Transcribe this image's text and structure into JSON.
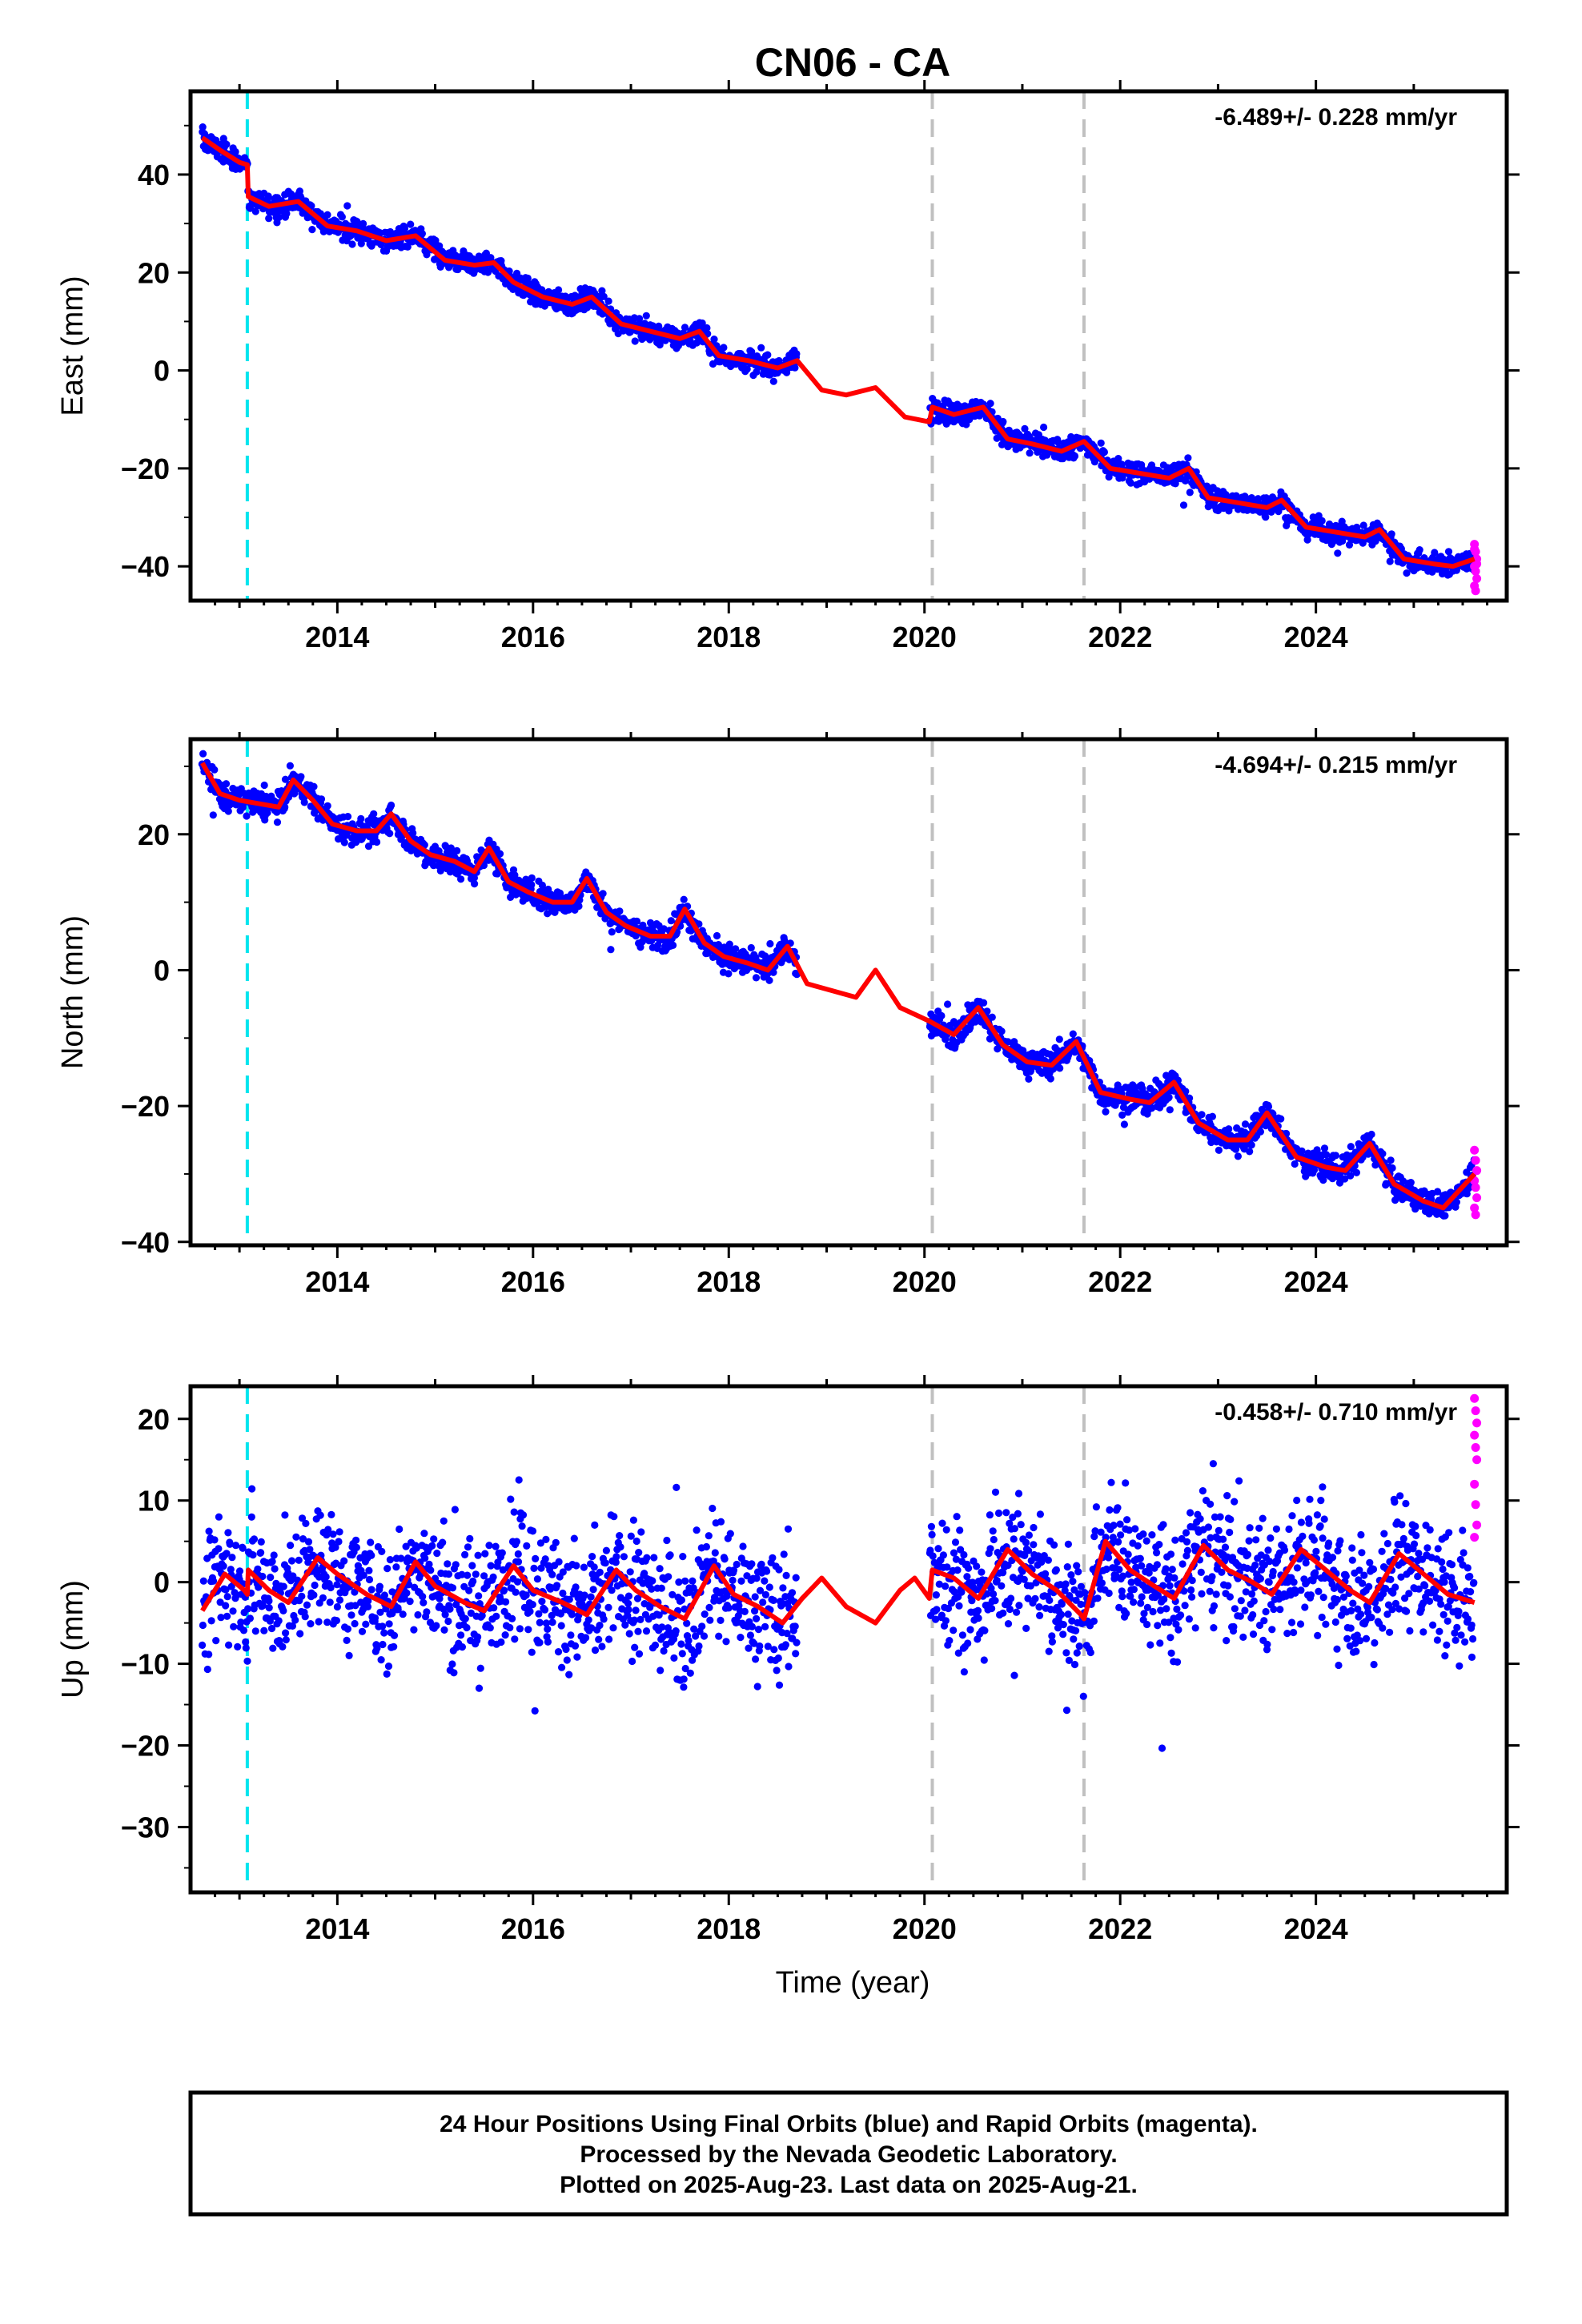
{
  "chart_data": {
    "title": "CN06 - CA",
    "type": "scatter",
    "x_ticks": [
      "2014",
      "2016",
      "2018",
      "2020",
      "2022",
      "2024"
    ],
    "xlim": [
      2012.5,
      2025.95
    ],
    "xlabel": "Time (year)",
    "vertical_lines": [
      {
        "x": 2013.08,
        "color": "#00e5ee",
        "style": "dashed"
      },
      {
        "x": 2020.08,
        "color": "#c0c0c0",
        "style": "dashed"
      },
      {
        "x": 2021.63,
        "color": "#c0c0c0",
        "style": "dashed"
      }
    ],
    "data_gap": [
      2018.7,
      2020.05
    ],
    "colors": {
      "final": "#0000ff",
      "rapid": "#ff00ff",
      "model": "#ff0000"
    },
    "panels": [
      {
        "ylabel": "East (mm)",
        "rate": "-6.489+/- 0.228 mm/yr",
        "y_ticks": [
          "40",
          "20",
          "0",
          "−20",
          "−40"
        ],
        "ylim": [
          -47,
          57
        ],
        "noise": 1.6,
        "model": [
          [
            2012.62,
            47.5
          ],
          [
            2012.8,
            45
          ],
          [
            2013.0,
            42.5
          ],
          [
            2013.08,
            42
          ],
          [
            2013.09,
            35.5
          ],
          [
            2013.3,
            33.5
          ],
          [
            2013.6,
            34.5
          ],
          [
            2013.9,
            29.5
          ],
          [
            2014.2,
            28.5
          ],
          [
            2014.5,
            26.5
          ],
          [
            2014.8,
            27.5
          ],
          [
            2015.1,
            22.5
          ],
          [
            2015.4,
            21.5
          ],
          [
            2015.6,
            22
          ],
          [
            2015.8,
            18
          ],
          [
            2016.1,
            15
          ],
          [
            2016.4,
            13.5
          ],
          [
            2016.6,
            15
          ],
          [
            2016.9,
            9.5
          ],
          [
            2017.2,
            8
          ],
          [
            2017.5,
            6.5
          ],
          [
            2017.7,
            8
          ],
          [
            2017.9,
            3
          ],
          [
            2018.2,
            2
          ],
          [
            2018.5,
            0.5
          ],
          [
            2018.7,
            2
          ],
          [
            2018.95,
            -4
          ],
          [
            2019.2,
            -5
          ],
          [
            2019.5,
            -3.5
          ],
          [
            2019.8,
            -9.5
          ],
          [
            2020.05,
            -10.5
          ],
          [
            2020.08,
            -7.5
          ],
          [
            2020.3,
            -9
          ],
          [
            2020.6,
            -7.5
          ],
          [
            2020.85,
            -14
          ],
          [
            2021.1,
            -15
          ],
          [
            2021.4,
            -16.5
          ],
          [
            2021.63,
            -14.5
          ],
          [
            2021.9,
            -20
          ],
          [
            2022.2,
            -21
          ],
          [
            2022.5,
            -22
          ],
          [
            2022.7,
            -20
          ],
          [
            2022.9,
            -26
          ],
          [
            2023.2,
            -27
          ],
          [
            2023.5,
            -28
          ],
          [
            2023.65,
            -26.5
          ],
          [
            2023.9,
            -32
          ],
          [
            2024.2,
            -33
          ],
          [
            2024.5,
            -34
          ],
          [
            2024.65,
            -32.5
          ],
          [
            2024.9,
            -38.5
          ],
          [
            2025.2,
            -39.5
          ],
          [
            2025.4,
            -40
          ],
          [
            2025.62,
            -38.5
          ]
        ],
        "rapid": [
          -35.5,
          -37,
          -38.5,
          -40,
          -41,
          -42.5,
          -44,
          -45,
          -39.5,
          -36.5
        ]
      },
      {
        "ylabel": "North (mm)",
        "rate": "-4.694+/- 0.215 mm/yr",
        "y_ticks": [
          "20",
          "0",
          "−20",
          "−40"
        ],
        "ylim": [
          -40.5,
          34
        ],
        "noise": 1.4,
        "model": [
          [
            2012.62,
            30.5
          ],
          [
            2012.8,
            26
          ],
          [
            2013.0,
            25
          ],
          [
            2013.2,
            24.5
          ],
          [
            2013.4,
            24
          ],
          [
            2013.55,
            28
          ],
          [
            2013.75,
            25
          ],
          [
            2013.95,
            21.5
          ],
          [
            2014.2,
            20.5
          ],
          [
            2014.4,
            20.5
          ],
          [
            2014.55,
            23
          ],
          [
            2014.75,
            19
          ],
          [
            2014.95,
            17
          ],
          [
            2015.2,
            16
          ],
          [
            2015.4,
            14.5
          ],
          [
            2015.55,
            18
          ],
          [
            2015.75,
            13
          ],
          [
            2015.95,
            11.5
          ],
          [
            2016.2,
            10
          ],
          [
            2016.4,
            10
          ],
          [
            2016.55,
            13.5
          ],
          [
            2016.75,
            8.5
          ],
          [
            2016.95,
            6.5
          ],
          [
            2017.2,
            5
          ],
          [
            2017.4,
            5
          ],
          [
            2017.55,
            9
          ],
          [
            2017.75,
            4
          ],
          [
            2017.95,
            2
          ],
          [
            2018.2,
            1
          ],
          [
            2018.4,
            0
          ],
          [
            2018.6,
            3.5
          ],
          [
            2018.8,
            -2
          ],
          [
            2019.05,
            -3
          ],
          [
            2019.3,
            -4
          ],
          [
            2019.5,
            0
          ],
          [
            2019.75,
            -5.5
          ],
          [
            2020.05,
            -7.5
          ],
          [
            2020.3,
            -9.5
          ],
          [
            2020.55,
            -5.5
          ],
          [
            2020.8,
            -11
          ],
          [
            2021.05,
            -13.5
          ],
          [
            2021.3,
            -14
          ],
          [
            2021.55,
            -10.5
          ],
          [
            2021.8,
            -18
          ],
          [
            2022.1,
            -19
          ],
          [
            2022.3,
            -19.5
          ],
          [
            2022.55,
            -16.5
          ],
          [
            2022.8,
            -22.5
          ],
          [
            2023.1,
            -25
          ],
          [
            2023.3,
            -25
          ],
          [
            2023.5,
            -21
          ],
          [
            2023.8,
            -27.5
          ],
          [
            2024.1,
            -29
          ],
          [
            2024.3,
            -29.5
          ],
          [
            2024.55,
            -25.5
          ],
          [
            2024.8,
            -31.5
          ],
          [
            2025.1,
            -34
          ],
          [
            2025.3,
            -35
          ],
          [
            2025.62,
            -30
          ]
        ],
        "rapid": [
          -26.5,
          -28,
          -29.5,
          -31,
          -32,
          -33.5,
          -35,
          -36
        ]
      },
      {
        "ylabel": "Up (mm)",
        "rate": "-0.458+/- 0.710 mm/yr",
        "y_ticks": [
          "20",
          "10",
          "0",
          "−10",
          "−20",
          "−30"
        ],
        "ylim": [
          -38,
          24
        ],
        "noise": 5.5,
        "model": [
          [
            2012.62,
            -3.5
          ],
          [
            2012.85,
            1
          ],
          [
            2013.05,
            -1
          ],
          [
            2013.08,
            -1.5
          ],
          [
            2013.09,
            1.5
          ],
          [
            2013.3,
            -1
          ],
          [
            2013.5,
            -2.5
          ],
          [
            2013.8,
            3
          ],
          [
            2014.0,
            1
          ],
          [
            2014.3,
            -1.5
          ],
          [
            2014.55,
            -3
          ],
          [
            2014.8,
            2.5
          ],
          [
            2015.0,
            -0.5
          ],
          [
            2015.3,
            -2.5
          ],
          [
            2015.5,
            -3.5
          ],
          [
            2015.8,
            2
          ],
          [
            2016.0,
            -1
          ],
          [
            2016.3,
            -2.5
          ],
          [
            2016.55,
            -4
          ],
          [
            2016.85,
            1.5
          ],
          [
            2017.05,
            -1
          ],
          [
            2017.3,
            -3
          ],
          [
            2017.55,
            -4.5
          ],
          [
            2017.85,
            2
          ],
          [
            2018.05,
            -1.5
          ],
          [
            2018.3,
            -3
          ],
          [
            2018.55,
            -5
          ],
          [
            2018.75,
            -2
          ],
          [
            2018.95,
            0.5
          ],
          [
            2019.2,
            -3
          ],
          [
            2019.5,
            -5
          ],
          [
            2019.75,
            -1
          ],
          [
            2019.9,
            0.5
          ],
          [
            2020.05,
            -2
          ],
          [
            2020.08,
            1.5
          ],
          [
            2020.3,
            0.5
          ],
          [
            2020.55,
            -2
          ],
          [
            2020.85,
            4
          ],
          [
            2021.1,
            1
          ],
          [
            2021.35,
            -1
          ],
          [
            2021.6,
            -4
          ],
          [
            2021.63,
            -4.5
          ],
          [
            2021.85,
            5
          ],
          [
            2022.1,
            1.5
          ],
          [
            2022.35,
            -0.5
          ],
          [
            2022.55,
            -2
          ],
          [
            2022.85,
            4.5
          ],
          [
            2023.1,
            1.5
          ],
          [
            2023.35,
            0
          ],
          [
            2023.55,
            -1.5
          ],
          [
            2023.85,
            4
          ],
          [
            2024.1,
            1.5
          ],
          [
            2024.35,
            -1
          ],
          [
            2024.55,
            -2.5
          ],
          [
            2024.85,
            3.5
          ],
          [
            2025.1,
            1
          ],
          [
            2025.35,
            -1.5
          ],
          [
            2025.62,
            -2.5
          ]
        ],
        "rapid": [
          22.5,
          21,
          19.5,
          18,
          16.5,
          15,
          12,
          9.5,
          7,
          5.5
        ]
      }
    ]
  },
  "caption": {
    "line1": "24 Hour Positions Using Final Orbits (blue) and Rapid Orbits (magenta).",
    "line2": "Processed by the Nevada Geodetic Laboratory.",
    "line3": "Plotted on 2025-Aug-23. Last data on 2025-Aug-21."
  }
}
